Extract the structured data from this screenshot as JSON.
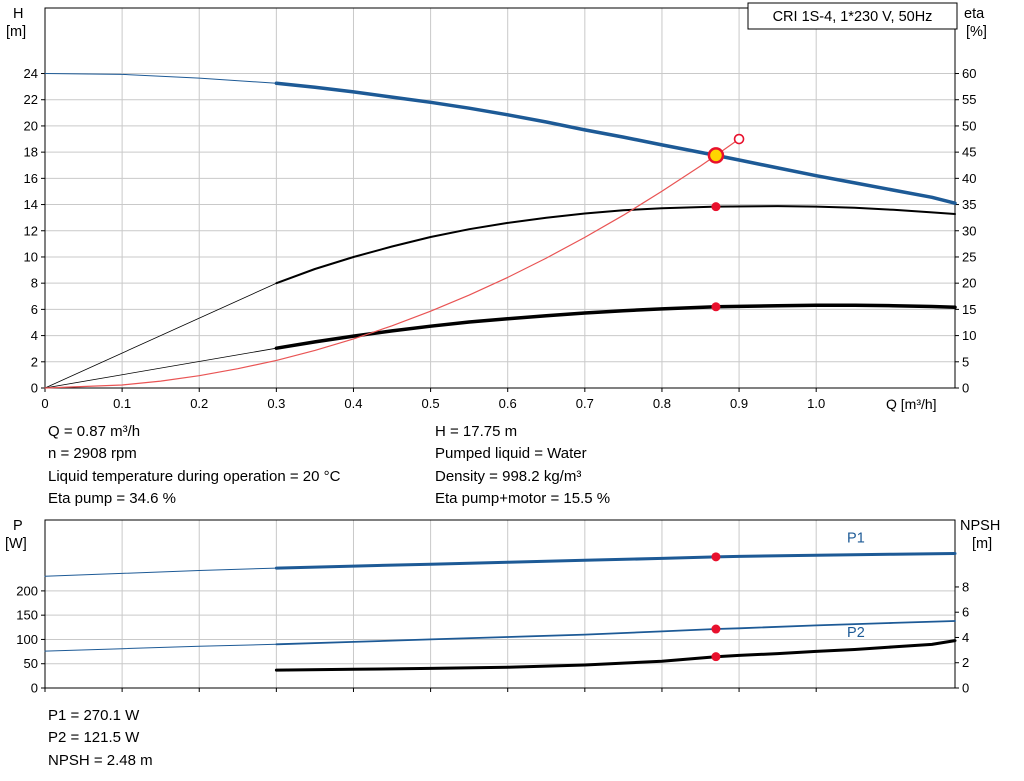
{
  "title_box": "CRI 1S-4, 1*230 V, 50Hz",
  "colors": {
    "curve_blue": "#1d5a96",
    "curve_black": "#000000",
    "system_red": "#e95454",
    "marker_red": "#e8112d",
    "duty_yellow": "#ffd500",
    "grid": "#c9c9c9",
    "border": "#000000"
  },
  "info_top": {
    "left": [
      "Q = 0.87 m³/h",
      "n = 2908 rpm",
      "Liquid temperature during operation = 20 °C",
      "Eta pump = 34.6 %"
    ],
    "right": [
      "H = 17.75 m",
      "Pumped liquid = Water",
      "Density = 998.2 kg/m³",
      "Eta pump+motor = 15.5 %"
    ]
  },
  "info_bottom": [
    "P1 = 270.1 W",
    "P2 = 121.5 W",
    "NPSH = 2.48 m"
  ],
  "chart_data": [
    {
      "type": "line",
      "title": "CRI 1S-4, 1*230 V, 50Hz",
      "x": {
        "label": "Q [m³/h]",
        "min": 0,
        "max": 1.18,
        "tick_values": [
          0,
          0.1,
          0.2,
          0.3,
          0.4,
          0.5,
          0.6,
          0.7,
          0.8,
          0.9,
          1.0
        ],
        "tick_labels": [
          "0",
          "0.1",
          "0.2",
          "0.3",
          "0.4",
          "0.5",
          "0.6",
          "0.7",
          "0.8",
          "0.9",
          "1.0"
        ]
      },
      "y_left": {
        "label": "H [m]",
        "min": 0,
        "max": 29,
        "ticks": [
          0,
          2,
          4,
          6,
          8,
          10,
          12,
          14,
          16,
          18,
          20,
          22,
          24
        ]
      },
      "y_right": {
        "label": "eta [%]",
        "min": 0,
        "max": 72.5,
        "ticks": [
          0,
          5,
          10,
          15,
          20,
          25,
          30,
          35,
          40,
          45,
          50,
          55,
          60
        ]
      },
      "grid": true,
      "series": [
        {
          "name": "head-curve",
          "axis": "left",
          "color": "#1d5a96",
          "thin": 1,
          "thick": 3.5,
          "split": 0.3,
          "points": [
            [
              0,
              24
            ],
            [
              0.1,
              23.93
            ],
            [
              0.2,
              23.65
            ],
            [
              0.3,
              23.25
            ],
            [
              0.35,
              22.95
            ],
            [
              0.4,
              22.6
            ],
            [
              0.45,
              22.2
            ],
            [
              0.5,
              21.8
            ],
            [
              0.55,
              21.35
            ],
            [
              0.6,
              20.85
            ],
            [
              0.65,
              20.3
            ],
            [
              0.7,
              19.7
            ],
            [
              0.75,
              19.15
            ],
            [
              0.8,
              18.55
            ],
            [
              0.87,
              17.75
            ],
            [
              0.9,
              17.4
            ],
            [
              0.95,
              16.8
            ],
            [
              1.0,
              16.2
            ],
            [
              1.05,
              15.65
            ],
            [
              1.1,
              15.1
            ],
            [
              1.15,
              14.55
            ],
            [
              1.18,
              14.1
            ]
          ]
        },
        {
          "name": "eta-pump-curve",
          "axis": "right",
          "color": "#000000",
          "thin": 0.8,
          "thick": 2,
          "split": 0.3,
          "points": [
            [
              0,
              0
            ],
            [
              0.3,
              20
            ],
            [
              0.35,
              22.7
            ],
            [
              0.4,
              25
            ],
            [
              0.45,
              27
            ],
            [
              0.5,
              28.8
            ],
            [
              0.55,
              30.3
            ],
            [
              0.6,
              31.5
            ],
            [
              0.65,
              32.5
            ],
            [
              0.7,
              33.3
            ],
            [
              0.75,
              33.9
            ],
            [
              0.8,
              34.3
            ],
            [
              0.87,
              34.6
            ],
            [
              0.95,
              34.7
            ],
            [
              1.0,
              34.6
            ],
            [
              1.05,
              34.4
            ],
            [
              1.1,
              34
            ],
            [
              1.15,
              33.5
            ],
            [
              1.18,
              33.2
            ]
          ]
        },
        {
          "name": "eta-pump-motor-curve",
          "axis": "right",
          "color": "#000000",
          "thin": 0.8,
          "thick": 3.5,
          "split": 0.3,
          "points": [
            [
              0,
              0
            ],
            [
              0.3,
              7.6
            ],
            [
              0.35,
              8.8
            ],
            [
              0.4,
              9.9
            ],
            [
              0.45,
              10.9
            ],
            [
              0.5,
              11.8
            ],
            [
              0.55,
              12.6
            ],
            [
              0.6,
              13.2
            ],
            [
              0.65,
              13.8
            ],
            [
              0.7,
              14.3
            ],
            [
              0.75,
              14.75
            ],
            [
              0.8,
              15.1
            ],
            [
              0.87,
              15.5
            ],
            [
              0.95,
              15.7
            ],
            [
              1.0,
              15.8
            ],
            [
              1.05,
              15.78
            ],
            [
              1.1,
              15.7
            ],
            [
              1.15,
              15.55
            ],
            [
              1.18,
              15.4
            ]
          ]
        },
        {
          "name": "system-curve",
          "axis": "left",
          "color": "#e95454",
          "thin": 1.2,
          "thick": 1.2,
          "split": null,
          "points": [
            [
              0,
              0
            ],
            [
              0.1,
              0.23
            ],
            [
              0.15,
              0.53
            ],
            [
              0.2,
              0.94
            ],
            [
              0.25,
              1.47
            ],
            [
              0.3,
              2.11
            ],
            [
              0.35,
              2.87
            ],
            [
              0.4,
              3.75
            ],
            [
              0.45,
              4.75
            ],
            [
              0.5,
              5.86
            ],
            [
              0.55,
              7.09
            ],
            [
              0.6,
              8.44
            ],
            [
              0.65,
              9.91
            ],
            [
              0.7,
              11.49
            ],
            [
              0.75,
              13.19
            ],
            [
              0.8,
              15.01
            ],
            [
              0.85,
              16.94
            ],
            [
              0.87,
              17.75
            ],
            [
              0.9,
              19.0
            ]
          ]
        }
      ],
      "markers": [
        {
          "name": "duty-point",
          "x": 0.87,
          "y": 17.75,
          "axis": "left",
          "style": "duty",
          "r": 7,
          "interactable": "true"
        },
        {
          "name": "eta-pump-point",
          "x": 0.87,
          "y": 34.6,
          "axis": "right",
          "style": "dot",
          "r": 4.5,
          "interactable": "false"
        },
        {
          "name": "eta-pump-motor-point",
          "x": 0.87,
          "y": 15.5,
          "axis": "right",
          "style": "dot",
          "r": 4.5,
          "interactable": "false"
        },
        {
          "name": "system-curve-handle",
          "x": 0.9,
          "y": 19.0,
          "axis": "left",
          "style": "open",
          "r": 4.5,
          "interactable": "true"
        }
      ],
      "labels": []
    },
    {
      "type": "line",
      "title": "",
      "x": {
        "label": "",
        "min": 0,
        "max": 1.18,
        "tick_values": [
          0,
          0.1,
          0.2,
          0.3,
          0.4,
          0.5,
          0.6,
          0.7,
          0.8,
          0.9,
          1.0
        ],
        "tick_labels": []
      },
      "y_left": {
        "label": "P [W]",
        "min": 0,
        "max": 346,
        "ticks": [
          0,
          50,
          100,
          150,
          200
        ]
      },
      "y_right": {
        "label": "NPSH [m]",
        "min": 0,
        "max": 13.3,
        "ticks": [
          0,
          2,
          4,
          6,
          8
        ]
      },
      "grid": true,
      "series": [
        {
          "name": "p1-curve",
          "axis": "left",
          "color": "#1d5a96",
          "thin": 1,
          "thick": 3,
          "split": 0.3,
          "points": [
            [
              0,
              230
            ],
            [
              0.1,
              236
            ],
            [
              0.2,
              242
            ],
            [
              0.3,
              247
            ],
            [
              0.4,
              251
            ],
            [
              0.5,
              255
            ],
            [
              0.6,
              259
            ],
            [
              0.7,
              263
            ],
            [
              0.8,
              267
            ],
            [
              0.87,
              270
            ],
            [
              0.9,
              271
            ],
            [
              1.0,
              273.5
            ],
            [
              1.1,
              275.5
            ],
            [
              1.18,
              277
            ]
          ]
        },
        {
          "name": "p2-curve",
          "axis": "left",
          "color": "#1d5a96",
          "thin": 1,
          "thick": 1.8,
          "split": 0.3,
          "points": [
            [
              0,
              76
            ],
            [
              0.1,
              81
            ],
            [
              0.2,
              86
            ],
            [
              0.3,
              90
            ],
            [
              0.4,
              95
            ],
            [
              0.5,
              100
            ],
            [
              0.6,
              105
            ],
            [
              0.7,
              110
            ],
            [
              0.8,
              116.5
            ],
            [
              0.87,
              121.5
            ],
            [
              0.9,
              123
            ],
            [
              1.0,
              129
            ],
            [
              1.1,
              134
            ],
            [
              1.18,
              138
            ]
          ]
        },
        {
          "name": "npsh-curve",
          "axis": "right",
          "color": "#000000",
          "thin": 3,
          "thick": 3,
          "split": null,
          "points": [
            [
              0.3,
              1.42
            ],
            [
              0.4,
              1.48
            ],
            [
              0.5,
              1.55
            ],
            [
              0.6,
              1.65
            ],
            [
              0.7,
              1.82
            ],
            [
              0.8,
              2.12
            ],
            [
              0.87,
              2.48
            ],
            [
              0.9,
              2.58
            ],
            [
              0.95,
              2.72
            ],
            [
              1.0,
              2.9
            ],
            [
              1.05,
              3.05
            ],
            [
              1.1,
              3.25
            ],
            [
              1.15,
              3.45
            ],
            [
              1.18,
              3.75
            ]
          ]
        }
      ],
      "markers": [
        {
          "name": "p1-point",
          "x": 0.87,
          "y": 270.1,
          "axis": "left",
          "style": "dot",
          "r": 4.5,
          "interactable": "false"
        },
        {
          "name": "p2-point",
          "x": 0.87,
          "y": 121.5,
          "axis": "left",
          "style": "dot",
          "r": 4.5,
          "interactable": "false"
        },
        {
          "name": "npsh-point",
          "x": 0.87,
          "y": 2.48,
          "axis": "right",
          "style": "dot",
          "r": 4.5,
          "interactable": "false"
        }
      ],
      "labels": [
        {
          "text": "P1",
          "x": 1.04,
          "y": 300,
          "axis": "left",
          "color": "#1d5a96"
        },
        {
          "text": "P2",
          "x": 1.04,
          "y": 105,
          "axis": "left",
          "color": "#1d5a96"
        }
      ]
    }
  ]
}
